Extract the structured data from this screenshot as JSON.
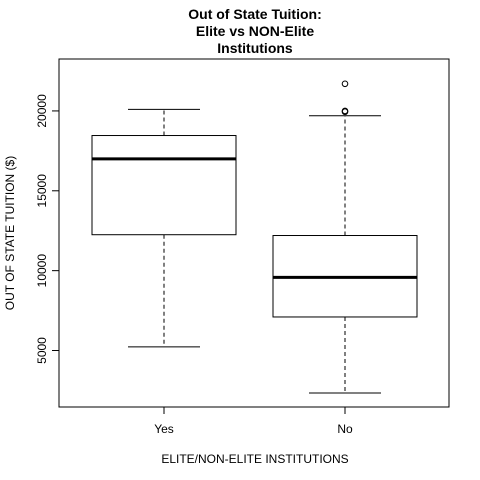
{
  "chart_data": {
    "type": "box",
    "title_lines": [
      "Out of State Tuition:",
      "Elite vs NON-Elite",
      "Institutions"
    ],
    "xlabel": "ELITE/NON-ELITE INSTITUTIONS",
    "ylabel": "OUT OF STATE TUITION ($)",
    "ylim": [
      2340,
      22500
    ],
    "yticks": [
      5000,
      10000,
      15000,
      20000
    ],
    "ytick_labels": [
      "5000",
      "10000",
      "15000",
      "20000"
    ],
    "categories": [
      "Yes",
      "No"
    ],
    "boxes": [
      {
        "category": "Yes",
        "min": 5224,
        "q1": 12250,
        "median": 17000,
        "q3": 18460,
        "max": 20100,
        "outliers": []
      },
      {
        "category": "No",
        "min": 2340,
        "q1": 7100,
        "median": 9580,
        "q3": 12200,
        "max": 19700,
        "outliers": [
          19950,
          20000,
          21700
        ]
      }
    ]
  }
}
